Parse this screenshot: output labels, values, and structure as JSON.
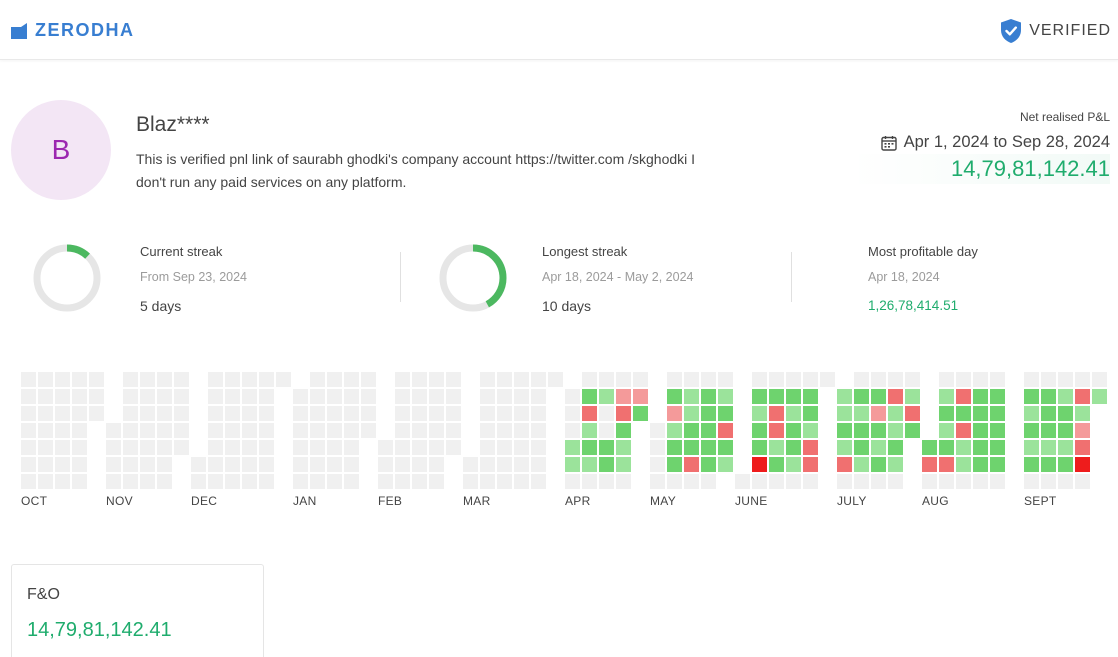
{
  "header": {
    "brand": "ZERODHA",
    "verified_label": "VERIFIED",
    "brand_color": "#387ed1"
  },
  "profile": {
    "avatar_letter": "B",
    "username": "Blaz****",
    "bio": "This is verified pnl link of saurabh ghodki's company account https://twitter.com /skghodki I don't run any paid services on any platform."
  },
  "pnl": {
    "label": "Net realised P&L",
    "date_range": "Apr 1, 2024 to Sep 28, 2024",
    "value": "14,79,81,142.41"
  },
  "stats": [
    {
      "title": "Current streak",
      "subtitle": "From Sep 23, 2024",
      "value": "5 days",
      "ring_fraction": 0.12
    },
    {
      "title": "Longest streak",
      "subtitle": "Apr 18, 2024 - May 2, 2024",
      "value": "10 days",
      "ring_fraction": 0.42
    },
    {
      "title": "Most profitable day",
      "subtitle": "Apr 18, 2024",
      "value": "1,26,78,414.51"
    }
  ],
  "calendar": {
    "months": [
      "OCT",
      "NOV",
      "DEC",
      "JAN",
      "FEB",
      "MAR",
      "APR",
      "MAY",
      "JUNE",
      "JULY",
      "AUG",
      "SEPT"
    ],
    "colors": {
      "empty": "#f0f0f0",
      "profit_light": "#9be39b",
      "profit_medium": "#6ed36e",
      "profit_strong": "#3cc13c",
      "loss_light": "#f49a9a",
      "loss_medium": "#f07070",
      "loss_strong": "#ee1c1c"
    }
  },
  "segments": [
    {
      "name": "F&O",
      "value": "14,79,81,142.41"
    }
  ]
}
